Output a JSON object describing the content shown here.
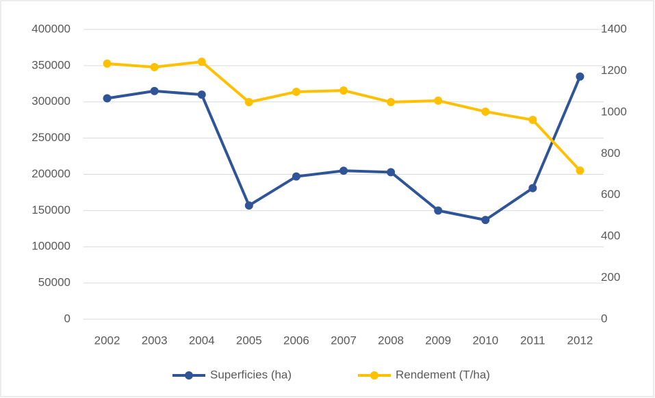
{
  "chart_data": {
    "type": "line",
    "x": [
      "2002",
      "2003",
      "2004",
      "2005",
      "2006",
      "2007",
      "2008",
      "2009",
      "2010",
      "2011",
      "2012"
    ],
    "series": [
      {
        "name": "Superficies (ha)",
        "color": "#2f5597",
        "values": [
          305000,
          315000,
          310000,
          157000,
          197000,
          205000,
          203000,
          150000,
          137000,
          181000,
          335000
        ]
      },
      {
        "name": "Rendement (T/ha)",
        "color": "#ffc000",
        "axis": "y2",
        "values": [
          1235,
          1218,
          1244,
          1049,
          1099,
          1105,
          1049,
          1056,
          1003,
          963,
          718
        ]
      }
    ],
    "ylim": [
      0,
      400000
    ],
    "yticks": [
      0,
      50000,
      100000,
      150000,
      200000,
      250000,
      300000,
      350000,
      400000
    ],
    "y2lim": [
      0,
      1400
    ],
    "y2ticks": [
      0,
      200,
      400,
      600,
      800,
      1000,
      1200,
      1400
    ],
    "grid": true,
    "legend": "bottom"
  }
}
